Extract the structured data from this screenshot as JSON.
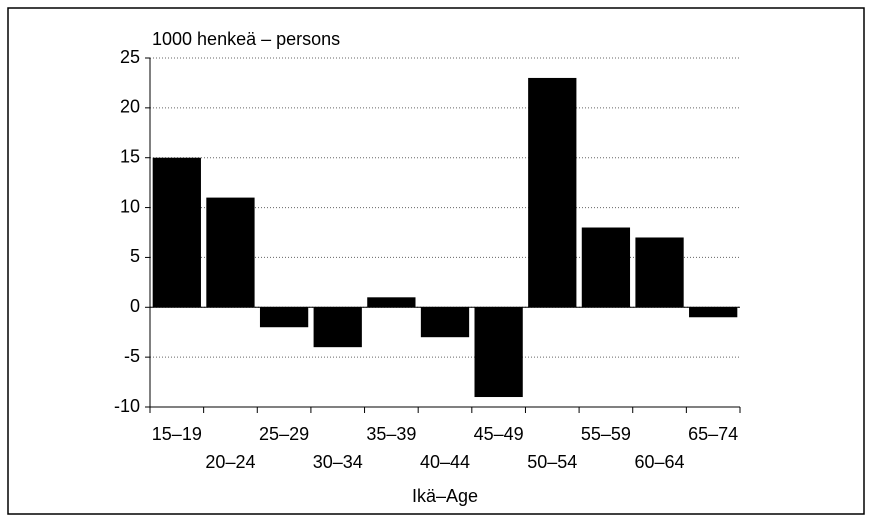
{
  "chart_data": {
    "type": "bar",
    "y_axis_label": "1000 henkeä – persons",
    "x_axis_label": "Ikä–Age",
    "categories": [
      "15–19",
      "20–24",
      "25–29",
      "30–34",
      "35–39",
      "40–44",
      "45–49",
      "50–54",
      "55–59",
      "60–64",
      "65–74"
    ],
    "values": [
      15,
      11,
      -2,
      -4,
      1,
      -3,
      -9,
      23,
      8,
      7,
      -1
    ],
    "color": "#000000",
    "ylim": [
      -10,
      25
    ],
    "yticks": [
      -10,
      -5,
      0,
      5,
      10,
      15,
      20,
      25
    ],
    "grid": true
  }
}
